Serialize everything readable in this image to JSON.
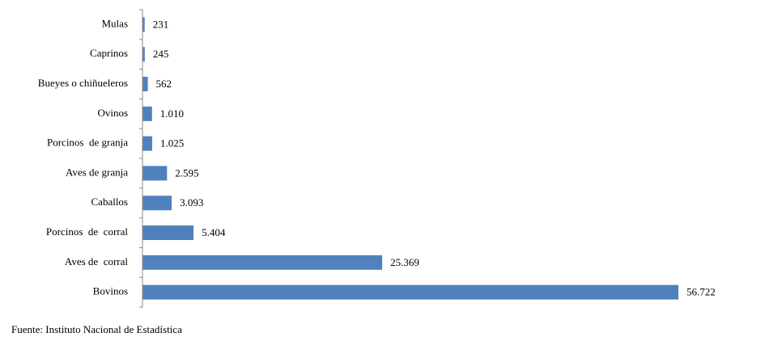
{
  "chart_data": {
    "type": "bar",
    "orientation": "horizontal",
    "categories": [
      "Mulas",
      "Caprinos",
      "Bueyes o chiñueleros",
      "Ovinos",
      "Porcinos  de granja",
      "Aves de granja",
      "Caballos",
      "Porcinos  de  corral",
      "Aves de  corral",
      "Bovinos"
    ],
    "values": [
      231,
      245,
      562,
      1010,
      1025,
      2595,
      3093,
      5404,
      25369,
      56722
    ],
    "value_labels": [
      "231",
      "245",
      "562",
      "1.010",
      "1.025",
      "2.595",
      "3.093",
      "5.404",
      "25.369",
      "56.722"
    ],
    "color": "#4f81bd",
    "source": "Fuente: Instituto Nacional de Estadística"
  }
}
